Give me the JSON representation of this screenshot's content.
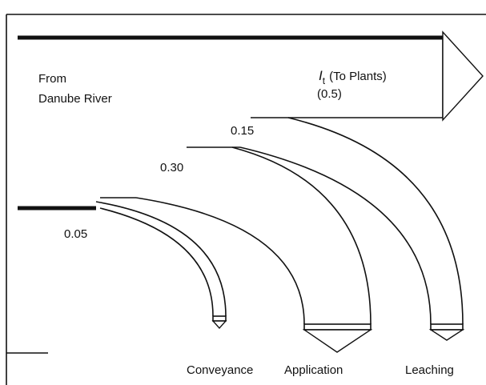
{
  "source": {
    "line1": "From",
    "line2": "Danube River"
  },
  "outflow": {
    "symbol": "I",
    "subscript": "t",
    "text": "(To Plants)",
    "fraction": "(0.5)"
  },
  "branches": [
    {
      "fraction": "0.05",
      "label": "Conveyance"
    },
    {
      "fraction": "0.30",
      "label": "Application"
    },
    {
      "fraction": "0.15",
      "label": "Leaching"
    }
  ]
}
